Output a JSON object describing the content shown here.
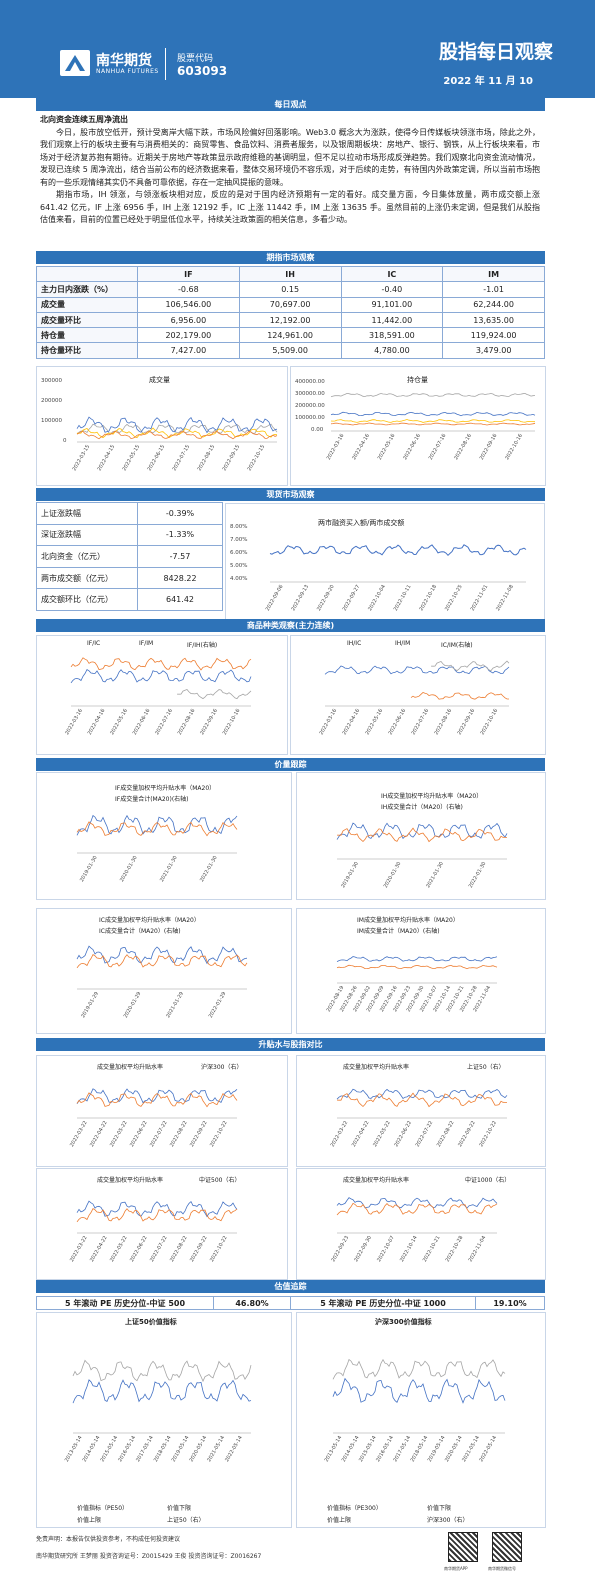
{
  "header": {
    "logo_name": "南华期货",
    "logo_en": "NANHUA FUTURES",
    "code_label": "股票代码",
    "code": "603093",
    "title": "股指每日观察",
    "date": "2022 年 11 月 10"
  },
  "daily": {
    "bar": "每日观点",
    "headline": "北向资金连续五周净流出",
    "p1": "今日，股市放空低开，预计受离岸大幅下跌，市场风险偏好回落影响。Web3.0 概念大为涨跌，使得今日传媒板块领涨市场，除此之外，我们观察上行的板块主要有与消费相关的：商贸零售、食品饮料、消费者服务，以及银周期板块：房地产、银行、钢铁，从上行板块来看，市场对于经济复苏抱有期待。近期关于房地产等政策显示政府维稳的基调明显，但不足以拉动市场形成反弹趋势。我们观察北向资金流动情况，发现已连续 5 周净流出，结合当前公布的经济数据来看，整体交易环境仍不容乐观，对于后续的走势，有待国内外政策定调，所以当前市场抱有的一些乐观情绪其实仍不具备可靠依据，存在一定抽风提振的意味。",
    "p2": "期指市场，IH 领涨，与领涨板块相对应，反应的是对于国内经济预期有一定的看好。成交量方面，今日集体放量，两市成交额上涨 641.42 亿元，IF 上涨 6956 手，IH 上涨 12192 手，IC 上涨 11442 手，IM 上涨 13635 手。虽然目前的上涨仍未定调，但是我们从股指估值来看，目前的位置已经处于明显低位水平，持续关注政策面的相关信息，多看少动。"
  },
  "futures": {
    "bar": "期指市场观察",
    "columns": [
      "IF",
      "IH",
      "IC",
      "IM"
    ],
    "rows": [
      {
        "label": "主力日内涨跌（%）",
        "values": [
          "-0.68",
          "0.15",
          "-0.40",
          "-1.01"
        ]
      },
      {
        "label": "成交量",
        "values": [
          "106,546.00",
          "70,697.00",
          "91,101.00",
          "62,244.00"
        ]
      },
      {
        "label": "成交量环比",
        "values": [
          "6,956.00",
          "12,192.00",
          "11,442.00",
          "13,635.00"
        ]
      },
      {
        "label": "持仓量",
        "values": [
          "202,179.00",
          "124,961.00",
          "318,591.00",
          "119,924.00"
        ]
      },
      {
        "label": "持仓量环比",
        "values": [
          "7,427.00",
          "5,509.00",
          "4,780.00",
          "3,479.00"
        ]
      }
    ]
  },
  "charts_f": {
    "vol_title": "成交量",
    "vol_y": [
      "300000",
      "200000",
      "100000",
      "0"
    ],
    "oi_title": "持仓量",
    "oi_y": [
      "400000.00",
      "300000.00",
      "200000.00",
      "100000.00",
      "0.00"
    ],
    "x": [
      "2022-03-15",
      "2022-04-15",
      "2022-05-15",
      "2022-06-15",
      "2022-07-15",
      "2022-08-15",
      "2022-09-15",
      "2022-10-15"
    ],
    "x_oi": [
      "2022-03-16",
      "2022-04-16",
      "2022-05-16",
      "2022-06-16",
      "2022-07-16",
      "2022-08-16",
      "2022-09-16",
      "2022-10-16"
    ],
    "legend": [
      "IF",
      "IH",
      "IC",
      "IM"
    ],
    "colors": [
      "#4472c4",
      "#ed7d31",
      "#a5a5a5",
      "#ffc000"
    ]
  },
  "spot": {
    "bar": "现货市场观察",
    "rows": [
      {
        "label": "上证涨跌幅",
        "value": "-0.39%"
      },
      {
        "label": "深证涨跌幅",
        "value": "-1.33%"
      },
      {
        "label": "北向资金（亿元）",
        "value": "-7.57"
      },
      {
        "label": "两市成交额（亿元）",
        "value": "8428.22"
      },
      {
        "label": "成交额环比（亿元）",
        "value": "641.42"
      }
    ],
    "chart_title": "两市融资买入额/两市成交额",
    "chart_y": [
      "8.00%",
      "7.00%",
      "6.00%",
      "5.00%",
      "4.00%"
    ],
    "chart_x": [
      "2022-09-06",
      "2022-09-13",
      "2022-09-20",
      "2022-09-27",
      "2022-10-04",
      "2022-10-11",
      "2022-10-18",
      "2022-10-25",
      "2022-11-01",
      "2022-11-08"
    ]
  },
  "spread": {
    "bar": "商品种类观察(主力连续)",
    "left_legend": [
      "IF/IC",
      "IF/IM",
      "IF/IH(右轴)"
    ],
    "left_y": [
      "0.75",
      "0.70",
      "0.65",
      "0.60",
      "0.55",
      "0.50"
    ],
    "left_y2": [
      "1.55",
      "1.50",
      "1.45",
      "1.40",
      "1.35"
    ],
    "right_legend": [
      "IH/IC",
      "IH/IM",
      "IC/IM(右轴)"
    ],
    "right_y": [
      "0.50",
      "0.45",
      "0.40",
      "0.35"
    ],
    "right_y2": [
      "0.96",
      "0.94",
      "0.92",
      "0.90",
      "0.88",
      "0.86"
    ],
    "x": [
      "2022-03-16",
      "2022-04-16",
      "2022-05-16",
      "2022-06-16",
      "2022-07-16",
      "2022-08-16",
      "2022-09-16",
      "2022-10-16"
    ]
  },
  "price": {
    "bar": "价量跟踪",
    "if_legend": [
      "IF成交量加权平均升贴水率（MA20）",
      "IF成交量合计(MA20)(右轴)"
    ],
    "if_y": [
      "0.50%",
      "0.00%",
      "-0.50%",
      "-1.00%",
      "-1.50%"
    ],
    "if_y2": [
      "240,000.00",
      "190,000.00",
      "140,000.00",
      "90,000.00",
      "40,000.00"
    ],
    "ih_legend": [
      "IH成交量加权平均升贴水率（MA20）",
      "IH成交量合计（MA20）(右轴)"
    ],
    "ih_y": [
      "1.00%",
      "0.00%",
      "-1.00%",
      "-2.00%"
    ],
    "ih_y2": [
      "120,000.00",
      "70,000.00",
      "20,000.00"
    ],
    "ic_legend": [
      "IC成交量加权平均升贴水率（MA20）",
      "IC成交量合计（MA20）(右轴)"
    ],
    "ic_y": [
      "0.00%",
      "-1.00%",
      "-2.00%",
      "-3.00%"
    ],
    "ic_y2": [
      "220,000.00",
      "170,000.00",
      "120,000.00",
      "70,000.00"
    ],
    "im_legend": [
      "IM成交量加权平均升贴水率（MA20）",
      "IM成交量合计（MA20）(右轴)"
    ],
    "im_y": [
      "-0.50%",
      "-1.00%",
      "-1.50%",
      "-2.00%",
      "-2.50%"
    ],
    "im_y2": [
      "90,000.00",
      "70,000.00",
      "50,000.00",
      "30,000.00"
    ],
    "x_long": [
      "2019-01-30",
      "2020-01-30",
      "2021-01-30",
      "2022-01-30"
    ],
    "x_ic": [
      "2019-01-29",
      "2020-01-29",
      "2021-01-29",
      "2022-01-29"
    ],
    "x_im": [
      "2022-08-19",
      "2022-08-26",
      "2022-09-02",
      "2022-09-09",
      "2022-09-16",
      "2022-09-23",
      "2022-09-30",
      "2022-10-07",
      "2022-10-14",
      "2022-10-21",
      "2022-10-28",
      "2022-11-04"
    ]
  },
  "basis": {
    "bar": "升贴水与股指对比",
    "c1_legend": [
      "成交量加权平均升贴水率",
      "沪深300（右）"
    ],
    "c1_y": [
      "1.00%",
      "0.00%",
      "-1.00%",
      "-2.00%"
    ],
    "c1_y2": [
      "5,000.00",
      "4,500.00",
      "4,000.00",
      "3,500.00"
    ],
    "c2_legend": [
      "成交量加权平均升贴水率",
      "上证50（右）"
    ],
    "c2_y": [
      "1.00%",
      "0.00%",
      "-1.00%",
      "-2.00%"
    ],
    "c2_y2": [
      "3,300.00",
      "3,100.00",
      "2,900.00",
      "2,700.00",
      "2,500.00"
    ],
    "c3_legend": [
      "成交量加权平均升贴水率",
      "中证500（右）"
    ],
    "c3_y": [
      "0.00%",
      "-0.50%",
      "-1.00%",
      "-1.50%",
      "-2.00%",
      "-2.50%",
      "-3.00%"
    ],
    "c3_y2": [
      "7,500.00",
      "7,000.00",
      "6,500.00",
      "6,000.00",
      "5,500.00"
    ],
    "c4_legend": [
      "成交量加权平均升贴水率",
      "中证1000（右）"
    ],
    "c4_y": [
      "0.00%",
      "-0.50%",
      "-1.00%",
      "-1.50%",
      "-2.00%",
      "-2.50%",
      "-3.00%"
    ],
    "c4_y2": [
      "8,000.00",
      "7,000.00",
      "6,000.00"
    ],
    "x": [
      "2022-03-22",
      "2022-04-22",
      "2022-05-22",
      "2022-06-22",
      "2022-07-22",
      "2022-08-22",
      "2022-09-22",
      "2022-10-22"
    ],
    "x4": [
      "2022-09-23",
      "2022-09-30",
      "2022-10-07",
      "2022-10-14",
      "2022-10-21",
      "2022-10-28",
      "2022-11-04"
    ]
  },
  "valuation": {
    "bar": "估值追踪",
    "pe": [
      {
        "label": "5 年滚动 PE 历史分位-中证 500",
        "value": "46.80%"
      },
      {
        "label": "5 年滚动 PE 历史分位-中证 1000",
        "value": "19.10%"
      }
    ],
    "sz50_title": "上证50价值指标",
    "sz50_y": [
      "14.00",
      "12.00",
      "10.00",
      "8.00"
    ],
    "sz50_y2": [
      "4,300.00",
      "3,300.00",
      "2,300.00",
      "1,300.00"
    ],
    "hs300_title": "沪深300价值指标",
    "hs300_y": [
      "8.50",
      "8.00",
      "7.50",
      "7.00",
      "6.50"
    ],
    "hs300_y2": [
      "6,000.00",
      "5,000.00",
      "4,000.00",
      "3,000.00",
      "2,000.00"
    ],
    "x": [
      "2013-05-14",
      "2014-05-14",
      "2015-05-14",
      "2016-05-14",
      "2017-05-14",
      "2018-05-14",
      "2019-05-14",
      "2020-05-14",
      "2021-05-14",
      "2022-05-14"
    ],
    "sz50_legend": [
      "价值指标（PE50）",
      "价值下限",
      "价值上限",
      "上证50（右）"
    ],
    "hs300_legend": [
      "价值指标（PE300）",
      "价值下限",
      "价值上限",
      "沪深300（右）"
    ]
  },
  "footer": {
    "disclaimer": "免责声明：本报告仅供投资参考，不构成任何投资建议",
    "info": "南华期货研究所  王梦丽  投资咨询证号：Z0015429     王俊  投资咨询证号：Z0016267",
    "qr1": "南华期货APP",
    "qr2": "南华期货微信号"
  }
}
